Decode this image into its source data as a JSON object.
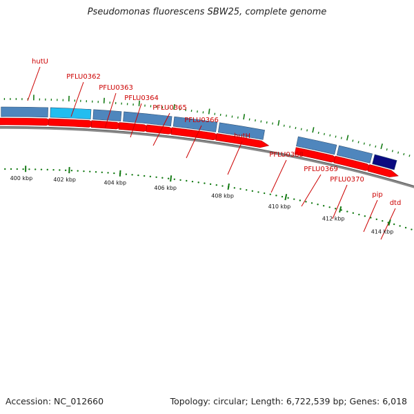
{
  "header": {
    "title": "Pseudomonas fluorescens SBW25, complete genome"
  },
  "footer": {
    "accession": "Accession: NC_012660",
    "topology": "Topology: circular; Length: 6,722,539 bp; Genes: 6,018"
  },
  "colors": {
    "cds": "#ff0000",
    "cds_hatch": "#880000",
    "gene_default": "#4f86bd",
    "label": "#cc0000",
    "tick": "#137a13",
    "backbone": "#888888"
  },
  "genes": [
    {
      "label": "hutU",
      "color": "#4f86bd"
    },
    {
      "label": "PFLU0362",
      "color": "#22bdf0"
    },
    {
      "label": "PFLU0363",
      "color": "#4f86bd"
    },
    {
      "label": "PFLU0364",
      "color": "#4f86bd"
    },
    {
      "label": "PFLU0365",
      "color": "#4f86bd"
    },
    {
      "label": "PFLU0366",
      "color": "#4f86bd"
    },
    {
      "label": "hutH",
      "color": "#4f86bd"
    },
    {
      "label": "PFLU0368",
      "color": "#4f86bd"
    },
    {
      "label": "PFLU0369",
      "color": "#0a0a80"
    },
    {
      "label": "PFLU0370",
      "color": "#4f86bd"
    },
    {
      "label": "pip",
      "color": "#f08a8a"
    },
    {
      "label": "dtd",
      "color": "#5a4f9a"
    }
  ],
  "ruler": [
    {
      "label": "400 kbp"
    },
    {
      "label": "402 kbp"
    },
    {
      "label": "404 kbp"
    },
    {
      "label": "406 kbp"
    },
    {
      "label": "408 kbp"
    },
    {
      "label": "410 kbp"
    },
    {
      "label": "412 kbp"
    },
    {
      "label": "414 kbp"
    }
  ]
}
